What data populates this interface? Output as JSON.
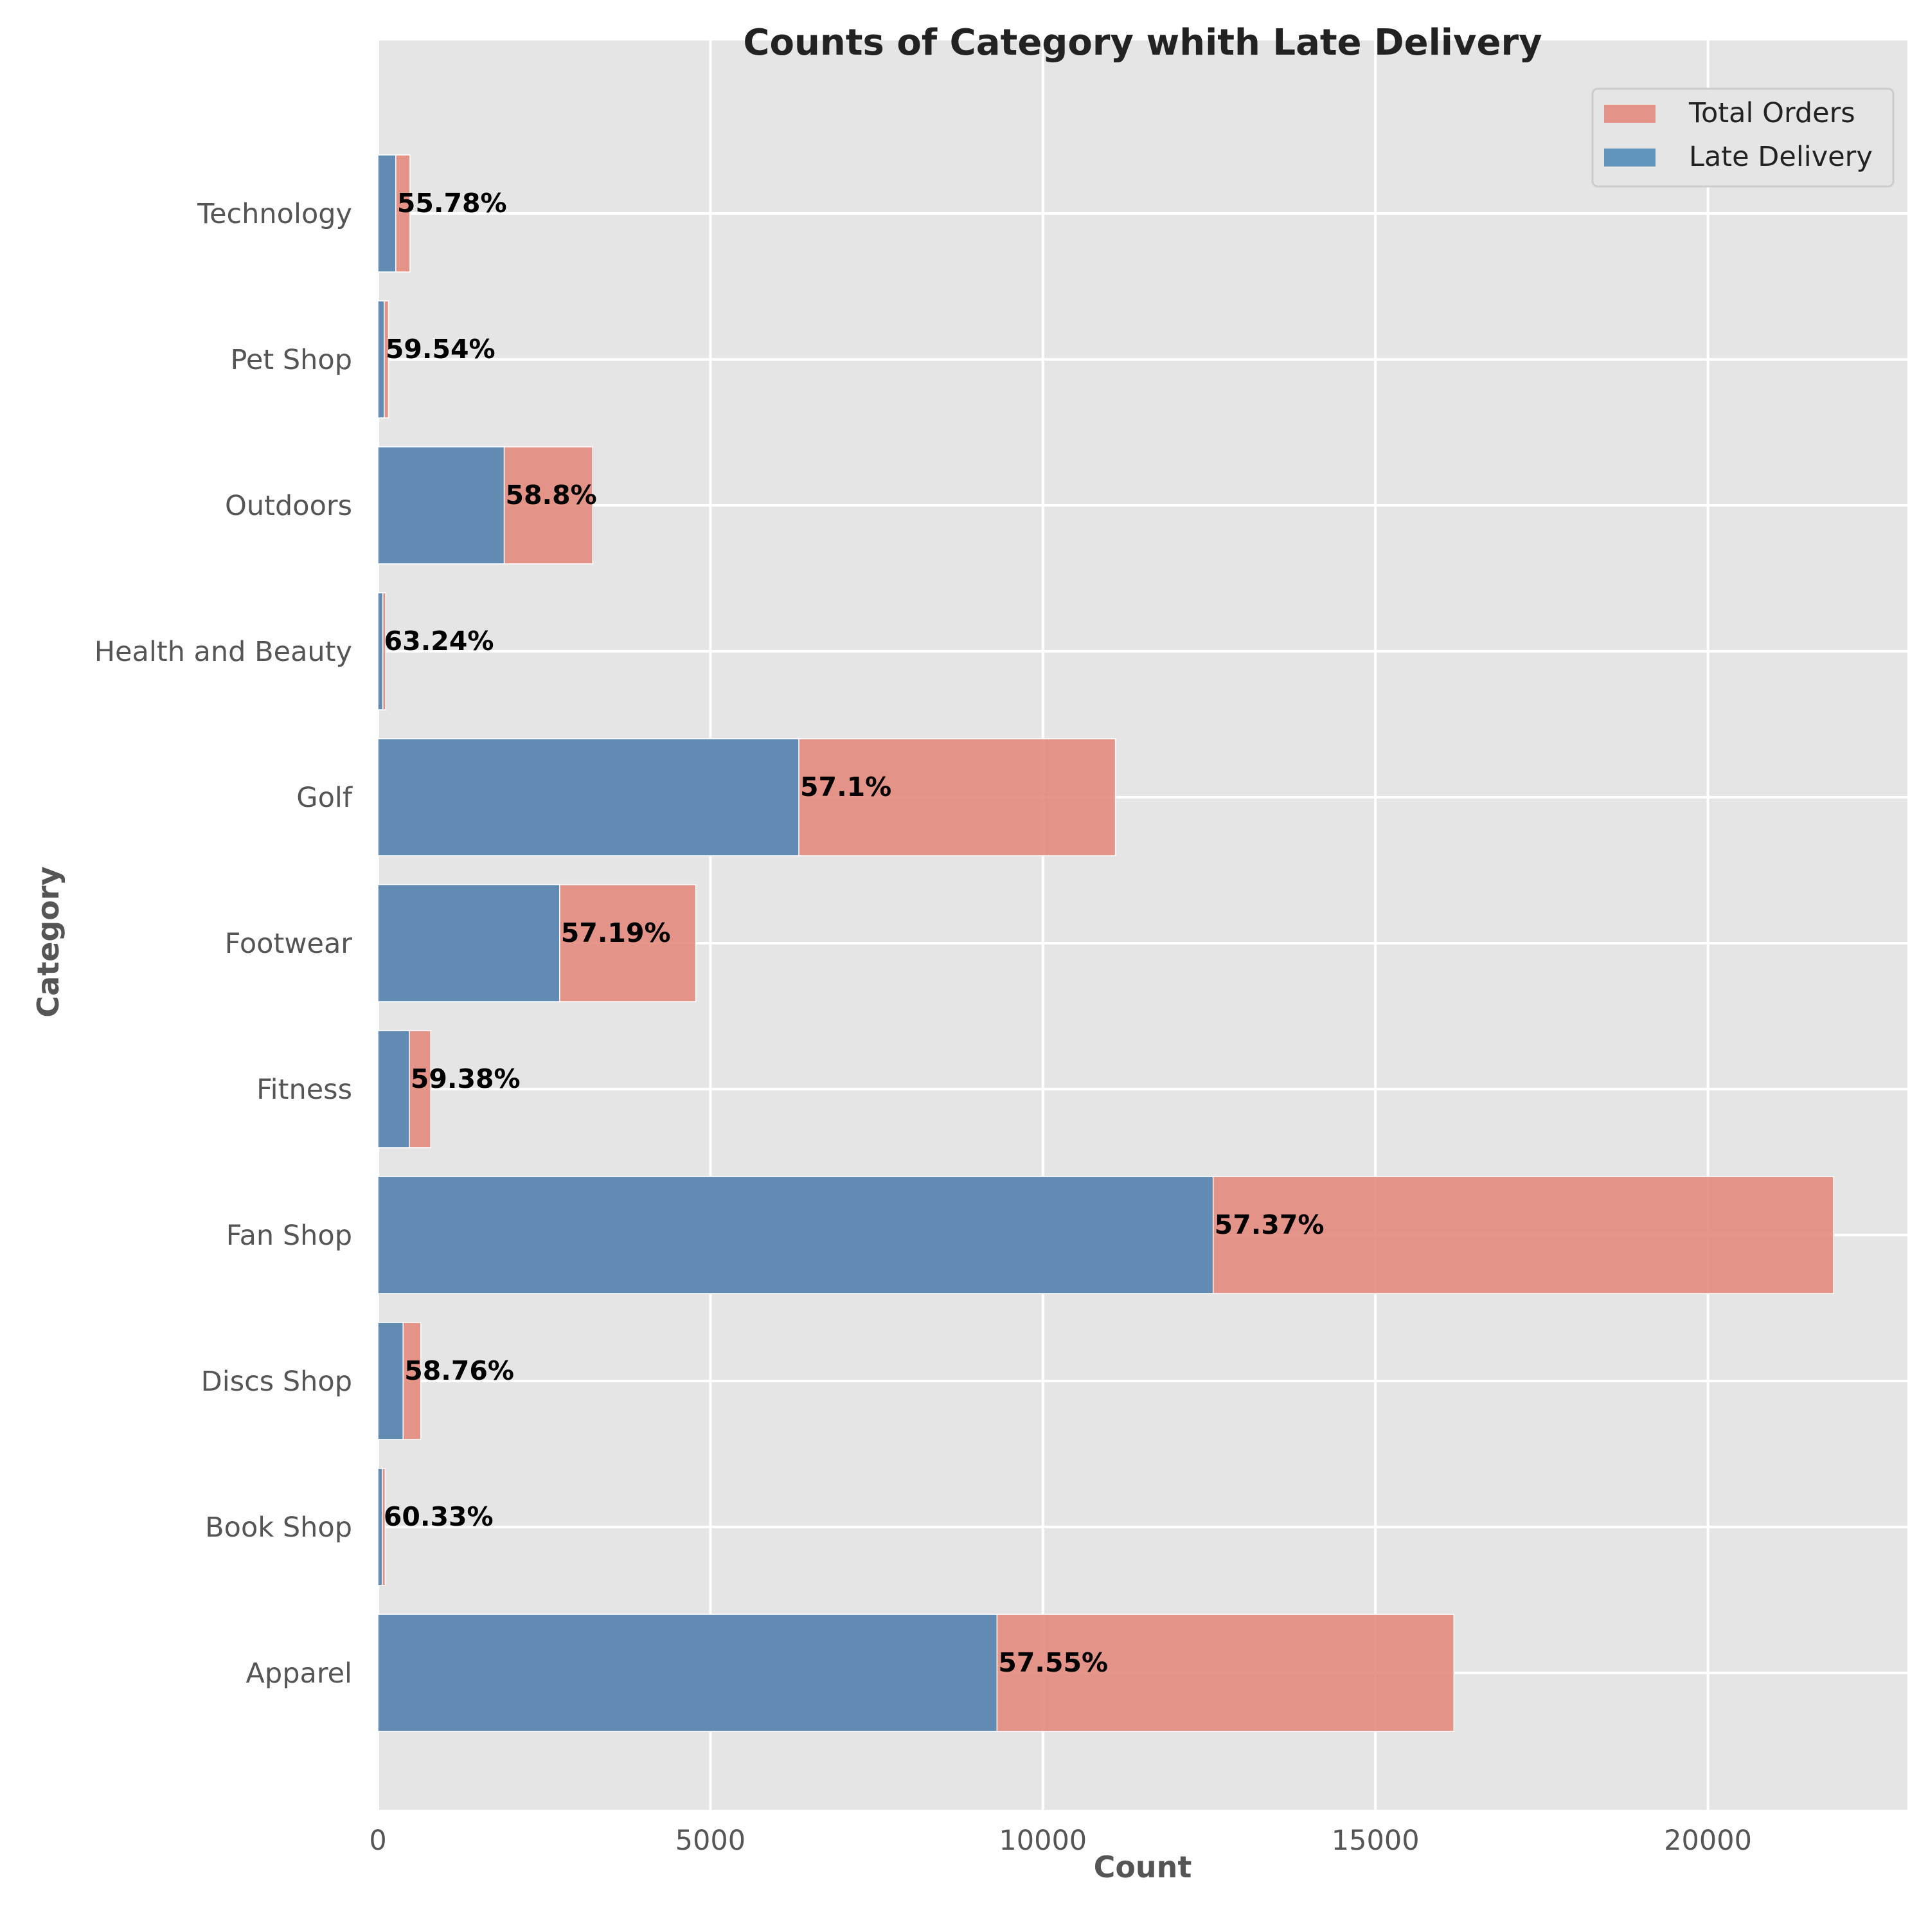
{
  "chart_data": {
    "type": "bar",
    "orientation": "horizontal",
    "title": "Counts of Category whith Late Delivery",
    "xlabel": "Count",
    "ylabel": "Category",
    "xlim": [
      0,
      23000
    ],
    "xticks": [
      0,
      5000,
      10000,
      15000,
      20000
    ],
    "grid": true,
    "legend_position": "top-right",
    "categories": [
      "Apparel",
      "Book Shop",
      "Discs Shop",
      "Fan Shop",
      "Fitness",
      "Footwear",
      "Golf",
      "Health and Beauty",
      "Outdoors",
      "Pet Shop",
      "Technology"
    ],
    "series": [
      {
        "name": "Total Orders",
        "color": "#e2877a",
        "values": [
          16180,
          110,
          645,
          21890,
          795,
          4780,
          11090,
          117,
          3230,
          160,
          483
        ]
      },
      {
        "name": "Late Delivery",
        "color": "#4e8ab8",
        "values": [
          9310,
          66,
          379,
          12560,
          472,
          2733,
          6330,
          74,
          1899,
          95,
          269
        ]
      }
    ],
    "annotations": [
      "57.55%",
      "60.33%",
      "58.76%",
      "57.37%",
      "59.38%",
      "57.19%",
      "57.1%",
      "63.24%",
      "58.8%",
      "59.54%",
      "55.78%"
    ]
  }
}
